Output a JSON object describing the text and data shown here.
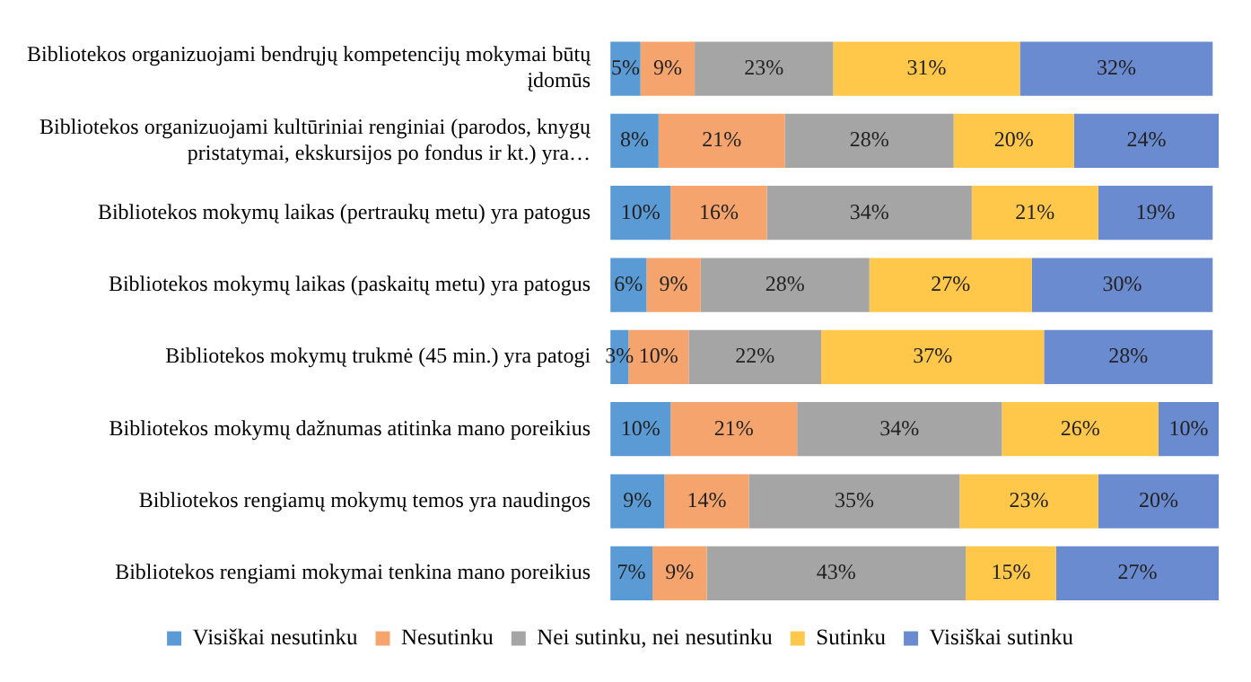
{
  "chart_data": {
    "type": "bar",
    "orientation": "horizontal",
    "stacked": true,
    "legend": "bottom",
    "categories": [
      "Bibliotekos organizuojami bendrųjų kompetencijų mokymai būtų įdomūs",
      "Bibliotekos organizuojami kultūriniai renginiai (parodos, knygų pristatymai, ekskursijos po fondus ir kt.) yra…",
      "Bibliotekos mokymų laikas (pertraukų metu) yra patogus",
      "Bibliotekos mokymų laikas (paskaitų metu) yra patogus",
      "Bibliotekos mokymų trukmė (45 min.) yra patogi",
      "Bibliotekos mokymų dažnumas atitinka mano poreikius",
      "Bibliotekos rengiamų mokymų temos yra naudingos",
      "Bibliotekos rengiami mokymai tenkina mano poreikius"
    ],
    "series": [
      {
        "name": "Visiškai nesutinku",
        "color": "#5b9bd5",
        "values": [
          5,
          8,
          10,
          6,
          3,
          10,
          9,
          7
        ],
        "value_labels": [
          "5%",
          "8%",
          "10%",
          "6%",
          "3%",
          "10%",
          "9%",
          "7%"
        ]
      },
      {
        "name": "Nesutinku",
        "color": "#f4a46c",
        "values": [
          9,
          21,
          16,
          9,
          10,
          21,
          14,
          9
        ],
        "value_labels": [
          "9%",
          "21%",
          "16%",
          "9%",
          "10%",
          "21%",
          "14%",
          "9%"
        ]
      },
      {
        "name": "Nei sutinku, nei nesutinku",
        "color": "#a5a5a5",
        "values": [
          23,
          28,
          34,
          28,
          22,
          34,
          35,
          43
        ],
        "value_labels": [
          "23%",
          "28%",
          "34%",
          "28%",
          "22%",
          "34%",
          "35%",
          "43%"
        ]
      },
      {
        "name": "Sutinku",
        "color": "#ffc84a",
        "values": [
          31,
          20,
          21,
          27,
          37,
          26,
          23,
          15
        ],
        "value_labels": [
          "31%",
          "20%",
          "21%",
          "27%",
          "37%",
          "26%",
          "23%",
          "15%"
        ]
      },
      {
        "name": "Visiškai sutinku",
        "color": "#6a8bd0",
        "values": [
          32,
          24,
          19,
          30,
          28,
          10,
          20,
          27
        ],
        "value_labels": [
          "32%",
          "24%",
          "19%",
          "30%",
          "28%",
          "10%",
          "20%",
          "27%"
        ]
      }
    ]
  }
}
